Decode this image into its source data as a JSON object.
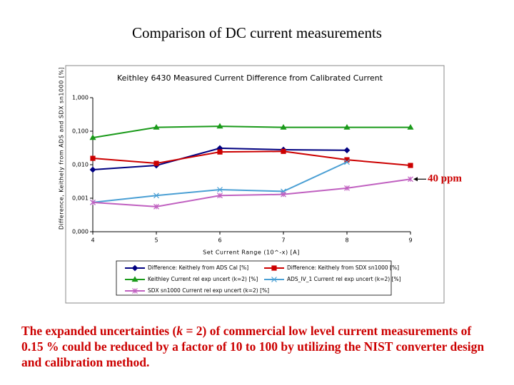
{
  "slide": {
    "title": "Comparison of DC current measurements",
    "caption": [
      "The expanded uncertainties (",
      "k",
      " = 2) of commercial low level current measurements of 0.15 % could be reduced by a factor of 10 to 100 by utilizing the NIST converter design and calibration method."
    ]
  },
  "chart_data": {
    "type": "line",
    "title": "Keithley 6430 Measured Current Difference from Calibrated Current",
    "x_label": "Set Current Range (10^-x) [A]",
    "y_label": "Difference, Keithely from ADS and SDX sn1000 [%]",
    "annotation": "40 ppm",
    "yscale": "log",
    "grid": false,
    "x": [
      4,
      5,
      6,
      7,
      8,
      9
    ],
    "xlim": [
      4,
      9
    ],
    "xticks": [
      4,
      5,
      6,
      7,
      8,
      9
    ],
    "ylim": [
      0.0001,
      1
    ],
    "yticks": [
      {
        "value": 0.0001,
        "label": "0,000"
      },
      {
        "value": 0.001,
        "label": "0,001"
      },
      {
        "value": 0.01,
        "label": "0,010"
      },
      {
        "value": 0.1,
        "label": "0,100"
      },
      {
        "value": 1,
        "label": "1,000"
      }
    ],
    "series": [
      {
        "name": "Difference: Keithely from ADS Cal [%]",
        "color": "#000080",
        "marker": "diamond",
        "values": [
          0.0071,
          0.0095,
          0.031,
          0.028,
          0.027,
          null
        ]
      },
      {
        "name": "Difference: Keithely from SDX sn1000 [%]",
        "color": "#cc0000",
        "marker": "square",
        "values": [
          0.0155,
          0.011,
          0.024,
          0.025,
          0.014,
          0.0095
        ]
      },
      {
        "name": "Keithley Current rel exp uncert (k=2) [%]",
        "color": "#1a9a1a",
        "marker": "triangle",
        "values": [
          0.064,
          0.13,
          0.14,
          0.13,
          0.13,
          0.13
        ]
      },
      {
        "name": "ADS_IV_1 Current rel exp uncert (k=2) [%]",
        "color": "#4a9fd4",
        "marker": "cross",
        "values": [
          0.00075,
          0.0012,
          0.0018,
          0.0016,
          0.012,
          null
        ]
      },
      {
        "name": "SDX sn1000 Current rel exp uncert (k=2) [%]",
        "color": "#c060c0",
        "marker": "star",
        "values": [
          0.00075,
          0.00056,
          0.0012,
          0.0013,
          0.002,
          0.0037
        ]
      }
    ]
  }
}
